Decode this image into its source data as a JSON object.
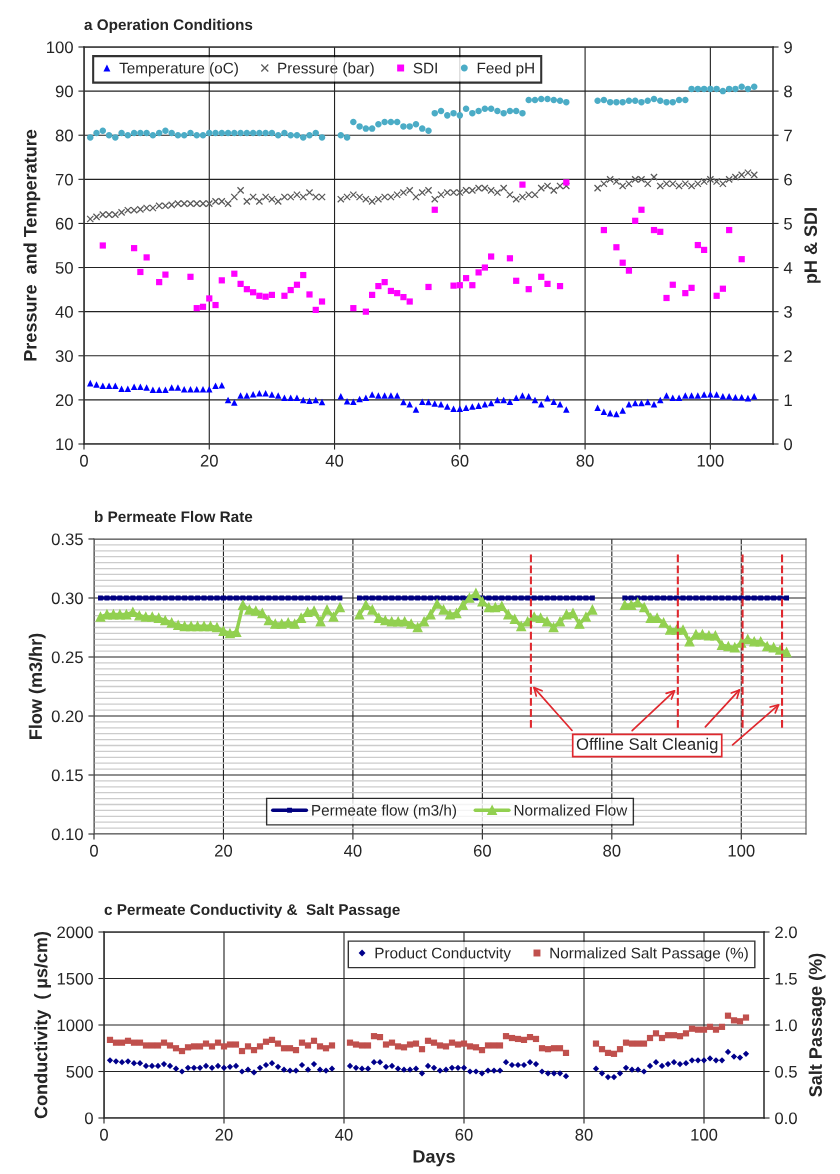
{
  "chart_data": [
    {
      "type": "scatter",
      "title": "a Operation Conditions",
      "ylabel": "Pressure  and Temperature",
      "y2label": "pH & SDI",
      "x": [
        1,
        2,
        3,
        4,
        5,
        6,
        7,
        8,
        9,
        10,
        11,
        12,
        13,
        14,
        15,
        16,
        17,
        18,
        19,
        20,
        21,
        22,
        23,
        24,
        25,
        26,
        27,
        28,
        29,
        30,
        31,
        32,
        33,
        34,
        35,
        36,
        37,
        38,
        39,
        40,
        41,
        42,
        43,
        44,
        45,
        46,
        47,
        48,
        49,
        50,
        51,
        52,
        53,
        54,
        55,
        56,
        57,
        58,
        59,
        60,
        61,
        62,
        63,
        64,
        65,
        66,
        67,
        68,
        69,
        70,
        71,
        72,
        73,
        74,
        75,
        76,
        77,
        78,
        79,
        80,
        81,
        82,
        83,
        84,
        85,
        86,
        87,
        88,
        89,
        90,
        91,
        92,
        93,
        94,
        95,
        96,
        97,
        98,
        99,
        100,
        101,
        102,
        103,
        104,
        105,
        106,
        107
      ],
      "xlim": [
        0,
        110
      ],
      "xticks": [
        0,
        20,
        40,
        60,
        80,
        100
      ],
      "ylim": [
        10,
        100
      ],
      "yticks": [
        10,
        20,
        30,
        40,
        50,
        60,
        70,
        80,
        90,
        100
      ],
      "y2lim": [
        0,
        9
      ],
      "y2ticks": [
        0,
        1,
        2,
        3,
        4,
        5,
        6,
        7,
        8,
        9
      ],
      "grid": true,
      "legend": "top left",
      "series": [
        {
          "name": "Temperature (oC)",
          "color": "#0000ff",
          "marker": "triangle",
          "values": [
            23.8,
            23.5,
            23.2,
            23.2,
            23.2,
            22.5,
            22.5,
            23,
            23,
            22.8,
            22.3,
            22.3,
            22.3,
            22.8,
            22.8,
            22.4,
            22.4,
            22.4,
            22.4,
            22.4,
            23.2,
            23.3,
            20,
            19.4,
            21,
            21,
            21.3,
            21.5,
            21.5,
            21.2,
            21,
            20.5,
            20.5,
            20.5,
            20,
            19.8,
            20,
            19.5,
            null,
            null,
            20.8,
            19.7,
            19.6,
            20.2,
            20.5,
            21.2,
            21,
            21,
            21,
            21,
            19.5,
            19,
            17.8,
            19.6,
            19.5,
            19.2,
            19,
            18.5,
            18,
            18,
            18.2,
            18.5,
            18.7,
            19,
            19.3,
            20,
            20,
            19.6,
            20.5,
            21,
            20.8,
            20,
            19,
            20.4,
            19.6,
            19,
            17.8,
            null,
            null,
            null,
            null,
            18.2,
            17.3,
            17,
            16.8,
            17.6,
            19,
            19.3,
            19.3,
            19.5,
            19,
            20,
            21,
            20.5,
            20.5,
            21,
            21,
            21,
            21.2,
            21.3,
            21.2,
            20.8,
            20.8,
            20.6,
            20.6,
            20.4,
            20.8
          ]
        },
        {
          "name": "Pressure (bar)",
          "color": "#595959",
          "marker": "cross",
          "values": [
            61,
            61.5,
            62,
            62,
            62,
            62.5,
            63,
            63,
            63.2,
            63.5,
            63.5,
            64,
            64,
            64.2,
            64.5,
            64.5,
            64.5,
            64.5,
            64.5,
            64.5,
            65,
            65,
            64.5,
            66,
            67.5,
            65,
            66,
            65,
            66,
            65.5,
            65,
            66,
            66,
            66.5,
            66,
            67,
            66,
            66,
            null,
            null,
            65.5,
            66,
            66.5,
            66,
            65.5,
            65,
            65.5,
            66,
            66,
            66.5,
            67,
            67.5,
            66,
            67,
            67.5,
            65.5,
            66.5,
            67,
            67,
            67,
            67.5,
            67.5,
            68,
            68,
            67.5,
            67,
            68,
            66.5,
            65.5,
            66,
            66.5,
            66.5,
            68,
            68.5,
            67.5,
            68.5,
            68.5,
            null,
            null,
            null,
            null,
            68,
            69,
            70,
            69.5,
            68.5,
            69,
            70,
            70,
            69,
            70.5,
            68.5,
            69,
            69,
            68.5,
            69,
            68.5,
            69,
            69.5,
            70,
            69.5,
            69,
            70,
            70.5,
            71,
            71.5,
            71
          ]
        },
        {
          "name": "SDI",
          "color": "#ff00ff",
          "marker": "square",
          "axis": "y2",
          "x": [
            3,
            8,
            9,
            10,
            12,
            13,
            17,
            18,
            19,
            20,
            21,
            22,
            24,
            25,
            26,
            27,
            28,
            29,
            30,
            32,
            33,
            34,
            35,
            36,
            37,
            38,
            43,
            45,
            46,
            47,
            48,
            49,
            50,
            51,
            52,
            55,
            56,
            59,
            60,
            61,
            62,
            63,
            64,
            65,
            68,
            69,
            70,
            71,
            73,
            74,
            76,
            77,
            83,
            85,
            86,
            87,
            88,
            89,
            91,
            92,
            93,
            94,
            96,
            97,
            98,
            99,
            101,
            102,
            103,
            105
          ],
          "values": [
            4.5,
            4.44,
            3.9,
            4.23,
            3.67,
            3.84,
            3.79,
            3.08,
            3.11,
            3.3,
            3.15,
            3.71,
            3.86,
            3.63,
            3.51,
            3.44,
            3.36,
            3.34,
            3.38,
            3.36,
            3.49,
            3.61,
            3.83,
            3.39,
            3.04,
            3.23,
            3.08,
            3.0,
            3.38,
            3.58,
            3.67,
            3.47,
            3.42,
            3.33,
            3.23,
            3.56,
            5.31,
            3.59,
            3.6,
            3.76,
            3.6,
            3.89,
            4.0,
            4.25,
            4.21,
            3.7,
            5.88,
            3.51,
            3.79,
            3.63,
            3.58,
            5.93,
            4.85,
            4.46,
            4.11,
            3.93,
            5.06,
            5.31,
            4.85,
            4.81,
            3.31,
            3.61,
            3.42,
            3.54,
            4.51,
            4.4,
            3.36,
            3.52,
            4.85,
            4.19
          ]
        },
        {
          "name": "Feed pH",
          "color": "#4bacc6",
          "marker": "circle",
          "axis": "y2",
          "values": [
            6.95,
            7.05,
            7.1,
            7.0,
            6.95,
            7.05,
            7.0,
            7.05,
            7.05,
            7.05,
            7.0,
            7.05,
            7.1,
            7.05,
            7.0,
            7.0,
            7.05,
            7.0,
            7.0,
            7.05,
            7.05,
            7.05,
            7.05,
            7.05,
            7.05,
            7.05,
            7.05,
            7.05,
            7.05,
            7.05,
            7.0,
            7.05,
            7.0,
            7.0,
            6.95,
            7.0,
            7.05,
            6.95,
            null,
            null,
            7.0,
            6.95,
            7.3,
            7.2,
            7.15,
            7.15,
            7.25,
            7.3,
            7.3,
            7.3,
            7.2,
            7.2,
            7.25,
            7.15,
            7.1,
            7.5,
            7.55,
            7.45,
            7.5,
            7.45,
            7.6,
            7.5,
            7.55,
            7.6,
            7.6,
            7.55,
            7.5,
            7.55,
            7.55,
            7.5,
            7.8,
            7.8,
            7.82,
            7.82,
            7.8,
            7.78,
            7.75,
            null,
            null,
            null,
            null,
            7.78,
            7.8,
            7.75,
            7.75,
            7.75,
            7.78,
            7.78,
            7.75,
            7.78,
            7.82,
            7.78,
            7.75,
            7.75,
            7.8,
            7.8,
            8.05,
            8.05,
            8.05,
            8.05,
            8.05,
            8.0,
            8.05,
            8.05,
            8.1,
            8.05,
            8.1
          ]
        }
      ]
    },
    {
      "type": "line",
      "title": "b Permeate Flow Rate",
      "ylabel": "Flow (m3/hr)",
      "x": [
        1,
        2,
        3,
        4,
        5,
        6,
        7,
        8,
        9,
        10,
        11,
        12,
        13,
        14,
        15,
        16,
        17,
        18,
        19,
        20,
        21,
        22,
        23,
        24,
        25,
        26,
        27,
        28,
        29,
        30,
        31,
        32,
        33,
        34,
        35,
        36,
        37,
        38,
        39,
        40,
        41,
        42,
        43,
        44,
        45,
        46,
        47,
        48,
        49,
        50,
        51,
        52,
        53,
        54,
        55,
        56,
        57,
        58,
        59,
        60,
        61,
        62,
        63,
        64,
        65,
        66,
        67,
        68,
        69,
        70,
        71,
        72,
        73,
        74,
        75,
        76,
        77,
        78,
        79,
        80,
        81,
        82,
        83,
        84,
        85,
        86,
        87,
        88,
        89,
        90,
        91,
        92,
        93,
        94,
        95,
        96,
        97,
        98,
        99,
        100,
        101,
        102,
        103,
        104,
        105,
        106,
        107
      ],
      "xlim": [
        0,
        110
      ],
      "xticks": [
        0,
        20,
        40,
        60,
        80,
        100
      ],
      "ylim": [
        0.1,
        0.35
      ],
      "yticks": [
        {
          "value": 0.1,
          "label": "0.10"
        },
        {
          "value": 0.105,
          "label": null
        },
        {
          "value": 0.11,
          "label": null
        },
        {
          "value": 0.115,
          "label": null
        },
        {
          "value": 0.12,
          "label": null
        },
        {
          "value": 0.125,
          "label": null
        },
        {
          "value": 0.13,
          "label": null
        },
        {
          "value": 0.135,
          "label": null
        },
        {
          "value": 0.14,
          "label": null
        },
        {
          "value": 0.145,
          "label": null
        },
        {
          "value": 0.15,
          "label": "0.15"
        },
        {
          "value": 0.155,
          "label": null
        },
        {
          "value": 0.16,
          "label": null
        },
        {
          "value": 0.165,
          "label": null
        },
        {
          "value": 0.17,
          "label": null
        },
        {
          "value": 0.175,
          "label": null
        },
        {
          "value": 0.18,
          "label": null
        },
        {
          "value": 0.185,
          "label": null
        },
        {
          "value": 0.19,
          "label": null
        },
        {
          "value": 0.195,
          "label": null
        },
        {
          "value": 0.2,
          "label": "0.20"
        },
        {
          "value": 0.205,
          "label": null
        },
        {
          "value": 0.21,
          "label": null
        },
        {
          "value": 0.215,
          "label": null
        },
        {
          "value": 0.22,
          "label": null
        },
        {
          "value": 0.225,
          "label": null
        },
        {
          "value": 0.23,
          "label": null
        },
        {
          "value": 0.235,
          "label": null
        },
        {
          "value": 0.24,
          "label": null
        },
        {
          "value": 0.245,
          "label": null
        },
        {
          "value": 0.25,
          "label": "0.25"
        },
        {
          "value": 0.255,
          "label": null
        },
        {
          "value": 0.26,
          "label": null
        },
        {
          "value": 0.265,
          "label": null
        },
        {
          "value": 0.27,
          "label": null
        },
        {
          "value": 0.275,
          "label": null
        },
        {
          "value": 0.28,
          "label": null
        },
        {
          "value": 0.285,
          "label": null
        },
        {
          "value": 0.29,
          "label": null
        },
        {
          "value": 0.295,
          "label": null
        },
        {
          "value": 0.3,
          "label": "0.30"
        },
        {
          "value": 0.305,
          "label": null
        },
        {
          "value": 0.31,
          "label": null
        },
        {
          "value": 0.315,
          "label": null
        },
        {
          "value": 0.32,
          "label": null
        },
        {
          "value": 0.325,
          "label": null
        },
        {
          "value": 0.33,
          "label": null
        },
        {
          "value": 0.335,
          "label": null
        },
        {
          "value": 0.34,
          "label": null
        },
        {
          "value": 0.345,
          "label": null
        },
        {
          "value": 0.35,
          "label": "0.35"
        }
      ],
      "grid": true,
      "legend": "bottom",
      "ref_lines": [
        {
          "axis": "x",
          "value": 67.5,
          "color": "#e0282e",
          "line_style": "dashed"
        },
        {
          "axis": "x",
          "value": 90.2,
          "color": "#e0282e",
          "line_style": "dashed"
        },
        {
          "axis": "x",
          "value": 100.2,
          "color": "#e0282e",
          "line_style": "dashed"
        },
        {
          "axis": "x",
          "value": 106.3,
          "color": "#e0282e",
          "line_style": "dashed"
        }
      ],
      "annotations": [
        {
          "text": "Offline Salt Cleanig",
          "x": 67.5,
          "y": 0.227
        }
      ],
      "series": [
        {
          "name": "Permeate flow (m3/h)",
          "color": "#000080",
          "marker": "square",
          "values": [
            0.3,
            0.3,
            0.3,
            0.3,
            0.3,
            0.3,
            0.3,
            0.3,
            0.3,
            0.3,
            0.3,
            0.3,
            0.3,
            0.3,
            0.3,
            0.3,
            0.3,
            0.3,
            0.3,
            0.3,
            0.3,
            0.3,
            0.3,
            0.3,
            0.3,
            0.3,
            0.3,
            0.3,
            0.3,
            0.3,
            0.3,
            0.3,
            0.3,
            0.3,
            0.3,
            0.3,
            0.3,
            0.3,
            null,
            null,
            0.3,
            0.3,
            0.3,
            0.3,
            0.3,
            0.3,
            0.3,
            0.3,
            0.3,
            0.3,
            0.3,
            0.3,
            0.3,
            0.3,
            0.3,
            0.3,
            0.3,
            0.3,
            0.3,
            0.3,
            0.3,
            0.3,
            0.3,
            0.3,
            0.3,
            0.3,
            0.3,
            0.3,
            0.3,
            0.3,
            0.3,
            0.3,
            0.3,
            0.3,
            0.3,
            0.3,
            0.3,
            null,
            null,
            null,
            null,
            0.3,
            0.3,
            0.3,
            0.3,
            0.3,
            0.3,
            0.3,
            0.3,
            0.3,
            0.3,
            0.3,
            0.3,
            0.3,
            0.3,
            0.3,
            0.3,
            0.3,
            0.3,
            0.3,
            0.3,
            0.3,
            0.3,
            0.3,
            0.3,
            0.3,
            0.3
          ]
        },
        {
          "name": "Normalized Flow",
          "color": "#92d050",
          "marker": "triangle",
          "values": [
            0.284,
            0.286,
            0.286,
            0.286,
            0.286,
            0.288,
            0.285,
            0.284,
            0.284,
            0.283,
            0.281,
            0.279,
            0.277,
            0.276,
            0.276,
            0.276,
            0.276,
            0.276,
            0.275,
            0.272,
            0.27,
            0.271,
            0.294,
            0.29,
            0.289,
            0.287,
            0.281,
            0.278,
            0.278,
            0.279,
            0.278,
            0.283,
            0.288,
            0.289,
            0.28,
            0.29,
            0.284,
            0.292,
            null,
            null,
            0.286,
            0.294,
            0.29,
            0.283,
            0.281,
            0.28,
            0.28,
            0.28,
            0.278,
            0.275,
            0.28,
            0.286,
            0.295,
            0.29,
            0.286,
            0.287,
            0.294,
            0.3,
            0.304,
            0.297,
            0.292,
            0.292,
            0.293,
            0.286,
            0.282,
            0.276,
            0.28,
            0.284,
            0.283,
            0.28,
            0.275,
            0.28,
            0.286,
            0.287,
            0.278,
            0.284,
            0.29,
            null,
            null,
            null,
            null,
            0.294,
            0.294,
            0.296,
            0.292,
            0.283,
            0.283,
            0.279,
            0.273,
            0.273,
            0.273,
            0.263,
            0.269,
            0.269,
            0.268,
            0.268,
            0.26,
            0.259,
            0.258,
            0.262,
            0.265,
            0.263,
            0.263,
            0.259,
            0.258,
            0.256,
            0.254
          ]
        }
      ]
    },
    {
      "type": "scatter",
      "title": "c Permeate Conductivity &  Salt Passage",
      "xlabel": "Days",
      "ylabel": "Conductivity  ( µs/cm)",
      "y2label": "Salt Passage (%)",
      "x": [
        1,
        2,
        3,
        4,
        5,
        6,
        7,
        8,
        9,
        10,
        11,
        12,
        13,
        14,
        15,
        16,
        17,
        18,
        19,
        20,
        21,
        22,
        23,
        24,
        25,
        26,
        27,
        28,
        29,
        30,
        31,
        32,
        33,
        34,
        35,
        36,
        37,
        38,
        39,
        40,
        41,
        42,
        43,
        44,
        45,
        46,
        47,
        48,
        49,
        50,
        51,
        52,
        53,
        54,
        55,
        56,
        57,
        58,
        59,
        60,
        61,
        62,
        63,
        64,
        65,
        66,
        67,
        68,
        69,
        70,
        71,
        72,
        73,
        74,
        75,
        76,
        77,
        78,
        79,
        80,
        81,
        82,
        83,
        84,
        85,
        86,
        87,
        88,
        89,
        90,
        91,
        92,
        93,
        94,
        95,
        96,
        97,
        98,
        99,
        100,
        101,
        102,
        103,
        104,
        105,
        106,
        107
      ],
      "xlim": [
        0,
        110
      ],
      "xticks": [
        0,
        20,
        40,
        60,
        80,
        100
      ],
      "ylim": [
        0,
        2000
      ],
      "yticks": [
        0,
        500,
        1000,
        1500,
        2000
      ],
      "y2lim": [
        0,
        2
      ],
      "y2ticks": [
        {
          "value": 0,
          "label": "0.0"
        },
        {
          "value": 0.5,
          "label": "0.5"
        },
        {
          "value": 1,
          "label": "1.0"
        },
        {
          "value": 1.5,
          "label": "1.5"
        },
        {
          "value": 2,
          "label": "2.0"
        }
      ],
      "grid": true,
      "legend": "top right",
      "series": [
        {
          "name": "Product Conductvity",
          "color": "#00008b",
          "marker": "diamond",
          "values": [
            620,
            610,
            600,
            610,
            590,
            590,
            560,
            560,
            560,
            580,
            560,
            530,
            500,
            540,
            540,
            540,
            560,
            540,
            560,
            540,
            550,
            560,
            500,
            520,
            490,
            540,
            570,
            590,
            550,
            520,
            510,
            510,
            570,
            520,
            580,
            520,
            510,
            530,
            null,
            null,
            560,
            540,
            530,
            530,
            600,
            600,
            550,
            560,
            530,
            520,
            520,
            530,
            480,
            560,
            540,
            510,
            520,
            540,
            540,
            540,
            500,
            500,
            480,
            510,
            510,
            510,
            600,
            570,
            570,
            570,
            600,
            580,
            500,
            480,
            480,
            480,
            450,
            null,
            null,
            null,
            null,
            530,
            480,
            440,
            440,
            480,
            540,
            520,
            520,
            500,
            560,
            600,
            560,
            580,
            600,
            580,
            590,
            620,
            620,
            620,
            640,
            620,
            620,
            710,
            660,
            650,
            690
          ]
        },
        {
          "name": "Normalized Salt Passage (%)",
          "color": "#c0504d",
          "marker": "square",
          "axis": "y2",
          "values": [
            0.84,
            0.81,
            0.81,
            0.83,
            0.81,
            0.81,
            0.78,
            0.78,
            0.78,
            0.81,
            0.78,
            0.75,
            0.72,
            0.76,
            0.77,
            0.77,
            0.8,
            0.77,
            0.81,
            0.77,
            0.79,
            0.79,
            0.72,
            0.77,
            0.73,
            0.77,
            0.82,
            0.84,
            0.8,
            0.75,
            0.75,
            0.73,
            0.81,
            0.78,
            0.83,
            0.77,
            0.75,
            0.78,
            null,
            null,
            0.81,
            0.79,
            0.78,
            0.78,
            0.88,
            0.87,
            0.79,
            0.81,
            0.77,
            0.76,
            0.79,
            0.8,
            0.74,
            0.83,
            0.81,
            0.78,
            0.77,
            0.81,
            0.79,
            0.8,
            0.77,
            0.76,
            0.73,
            0.78,
            0.78,
            0.78,
            0.88,
            0.86,
            0.85,
            0.84,
            0.87,
            0.85,
            0.75,
            0.74,
            0.75,
            0.75,
            0.7,
            null,
            null,
            null,
            null,
            0.8,
            0.74,
            0.7,
            0.69,
            0.74,
            0.81,
            0.8,
            0.8,
            0.8,
            0.86,
            0.91,
            0.86,
            0.89,
            0.89,
            0.88,
            0.91,
            0.96,
            0.95,
            0.95,
            0.98,
            0.95,
            0.98,
            1.1,
            1.05,
            1.04,
            1.08
          ]
        }
      ]
    }
  ]
}
